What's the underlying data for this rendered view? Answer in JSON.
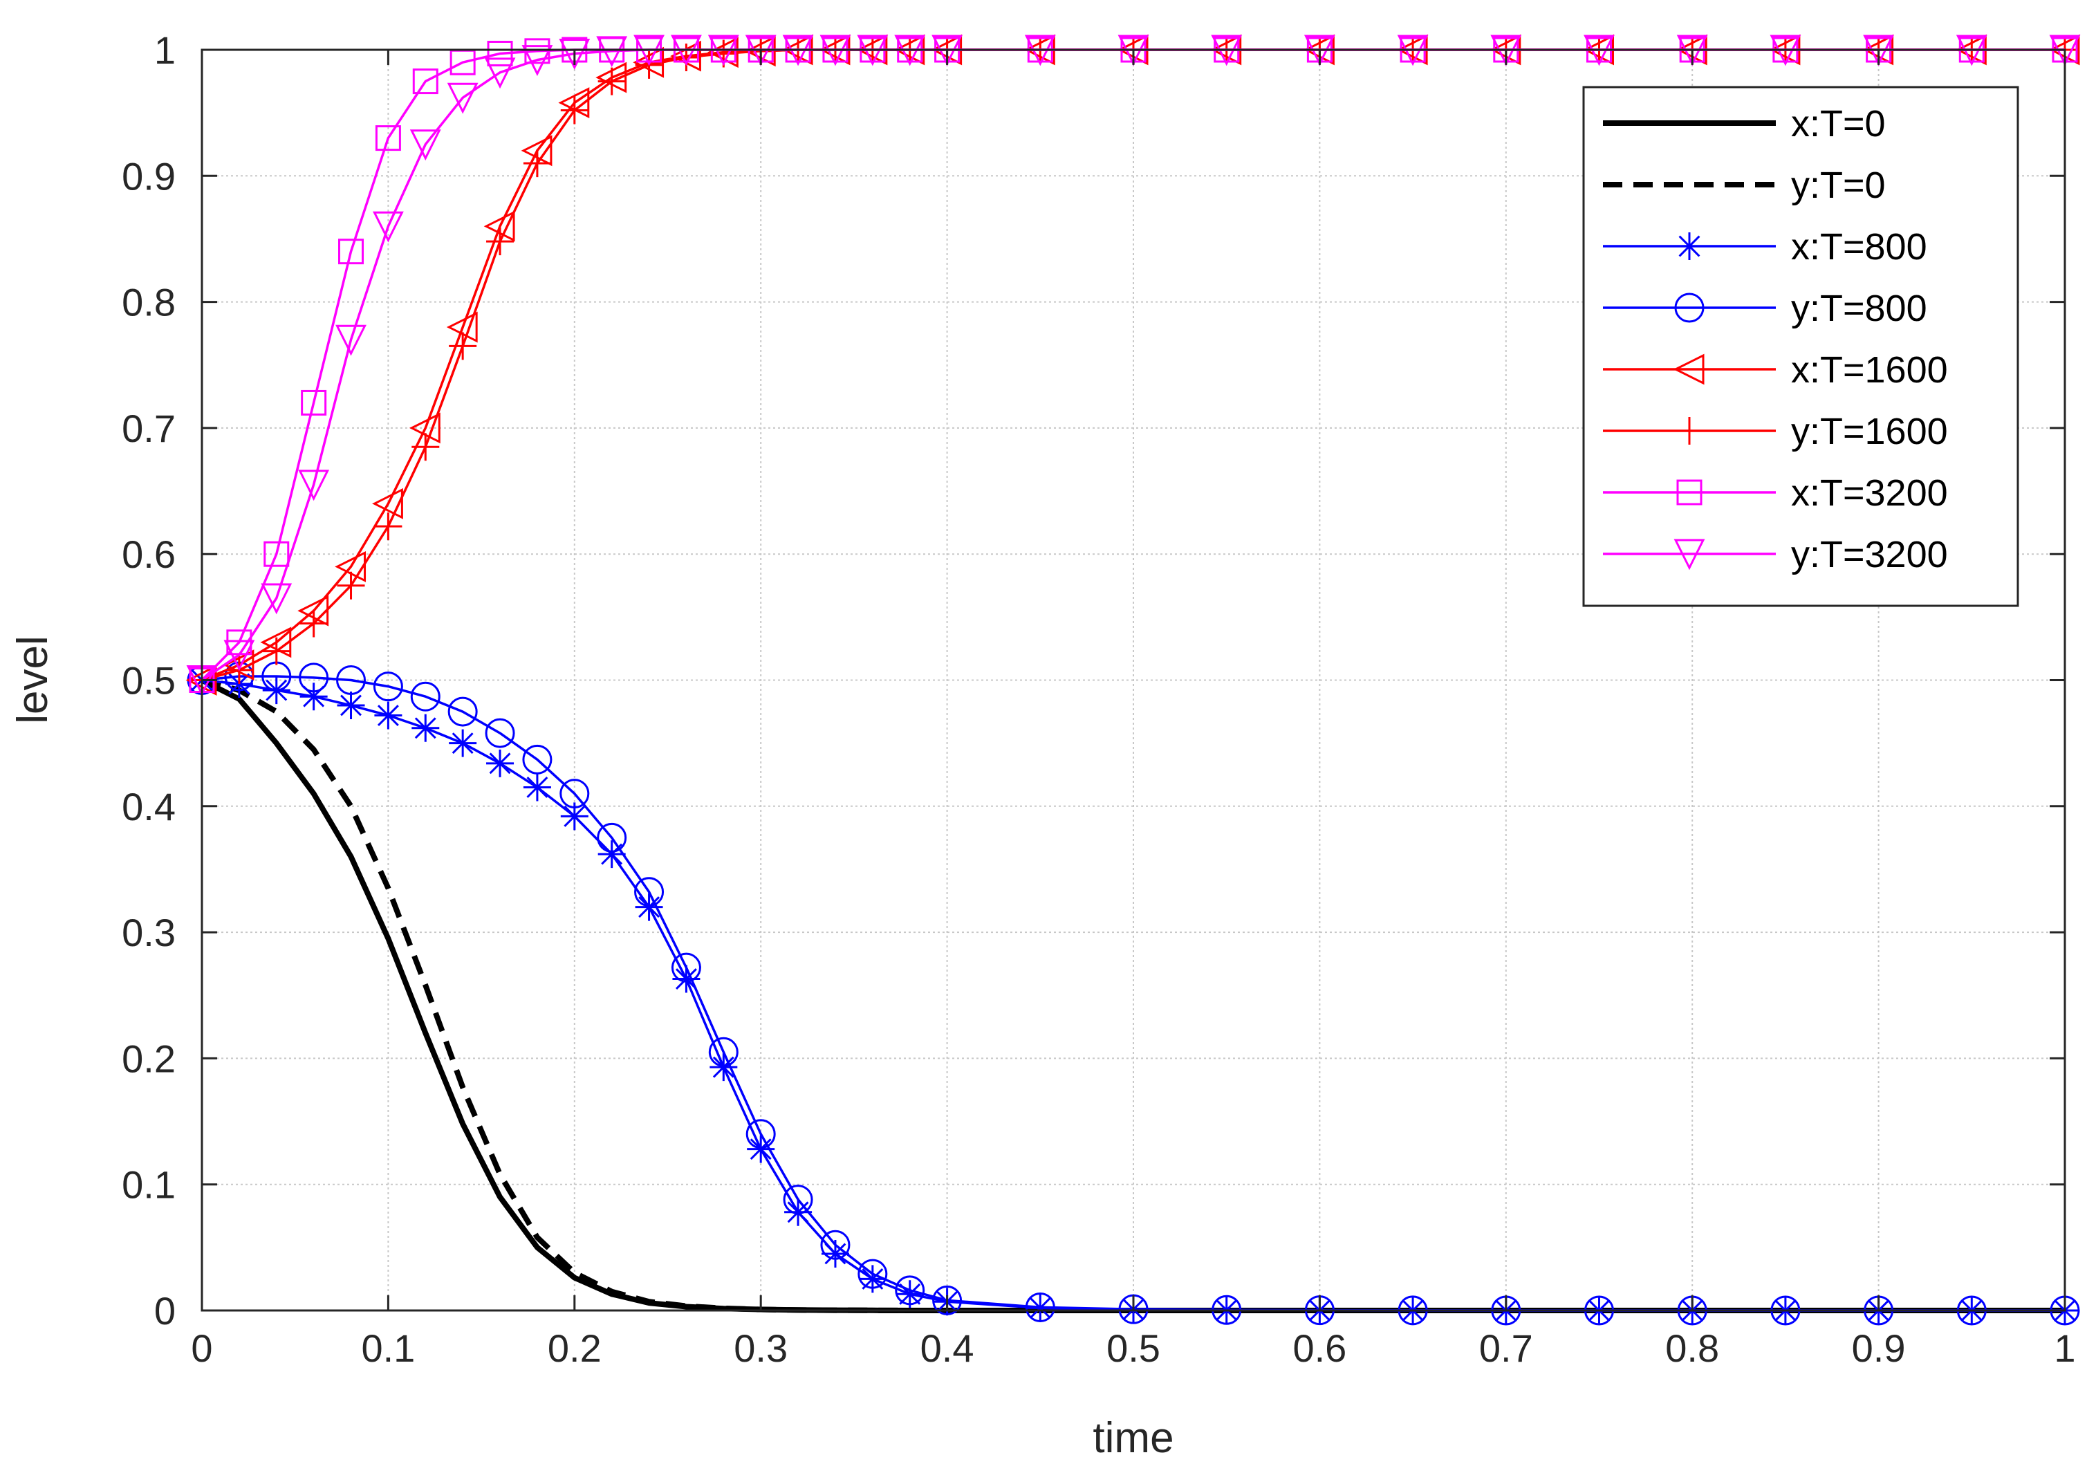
{
  "chart_data": {
    "type": "line",
    "title": "",
    "xlabel": "time",
    "ylabel": "level",
    "xlim": [
      0,
      1
    ],
    "ylim": [
      0,
      1
    ],
    "grid": true,
    "legend_position": "top-right",
    "x_ticks": [
      "0",
      "0.1",
      "0.2",
      "0.3",
      "0.4",
      "0.5",
      "0.6",
      "0.7",
      "0.8",
      "0.9",
      "1"
    ],
    "y_ticks": [
      "0",
      "0.1",
      "0.2",
      "0.3",
      "0.4",
      "0.5",
      "0.6",
      "0.7",
      "0.8",
      "0.9",
      "1"
    ],
    "x": [
      0,
      0.02,
      0.04,
      0.06,
      0.08,
      0.1,
      0.12,
      0.14,
      0.16,
      0.18,
      0.2,
      0.22,
      0.24,
      0.26,
      0.28,
      0.3,
      0.32,
      0.34,
      0.36,
      0.38,
      0.4,
      0.45,
      0.5,
      0.55,
      0.6,
      0.65,
      0.7,
      0.75,
      0.8,
      0.85,
      0.9,
      0.95,
      1
    ],
    "series": [
      {
        "name": "x:T=0",
        "color": "#000000",
        "line": "solid-thick",
        "marker": "none",
        "values": [
          0.5,
          0.485,
          0.45,
          0.41,
          0.36,
          0.295,
          0.22,
          0.148,
          0.09,
          0.05,
          0.026,
          0.013,
          0.006,
          0.003,
          0.0015,
          0.0008,
          0.0004,
          0.0002,
          0.0001,
          0,
          0,
          0,
          0,
          0,
          0,
          0,
          0,
          0,
          0,
          0,
          0,
          0,
          0
        ]
      },
      {
        "name": "y:T=0",
        "color": "#000000",
        "line": "dashed-thick",
        "marker": "none",
        "values": [
          0.5,
          0.492,
          0.475,
          0.445,
          0.4,
          0.335,
          0.258,
          0.177,
          0.108,
          0.058,
          0.03,
          0.015,
          0.007,
          0.0035,
          0.0017,
          0.0008,
          0.0004,
          0.0002,
          0.0001,
          0,
          0,
          0,
          0,
          0,
          0,
          0,
          0,
          0,
          0,
          0,
          0,
          0,
          0
        ]
      },
      {
        "name": "x:T=800",
        "color": "#0000ff",
        "line": "solid",
        "marker": "star",
        "values": [
          0.5,
          0.497,
          0.492,
          0.487,
          0.48,
          0.472,
          0.462,
          0.45,
          0.434,
          0.415,
          0.392,
          0.362,
          0.32,
          0.263,
          0.193,
          0.128,
          0.078,
          0.045,
          0.025,
          0.013,
          0.007,
          0.002,
          0.0008,
          0.0003,
          0.0001,
          0,
          0,
          0,
          0,
          0,
          0,
          0,
          0
        ]
      },
      {
        "name": "y:T=800",
        "color": "#0000ff",
        "line": "solid",
        "marker": "circle",
        "values": [
          0.5,
          0.503,
          0.503,
          0.502,
          0.5,
          0.495,
          0.487,
          0.475,
          0.458,
          0.437,
          0.41,
          0.375,
          0.332,
          0.272,
          0.205,
          0.14,
          0.088,
          0.052,
          0.029,
          0.016,
          0.008,
          0.0025,
          0.001,
          0.0004,
          0.0002,
          0.0001,
          0,
          0,
          0,
          0,
          0,
          0,
          0
        ]
      },
      {
        "name": "x:T=1600",
        "color": "#ff0000",
        "line": "solid",
        "marker": "triangle-left",
        "values": [
          0.5,
          0.512,
          0.53,
          0.555,
          0.59,
          0.64,
          0.7,
          0.78,
          0.86,
          0.92,
          0.958,
          0.978,
          0.99,
          0.995,
          0.998,
          0.999,
          1,
          1,
          1,
          1,
          1,
          1,
          1,
          1,
          1,
          1,
          1,
          1,
          1,
          1,
          1,
          1,
          1
        ]
      },
      {
        "name": "y:T=1600",
        "color": "#ff0000",
        "line": "solid",
        "marker": "plus",
        "values": [
          0.5,
          0.508,
          0.523,
          0.545,
          0.575,
          0.622,
          0.685,
          0.765,
          0.848,
          0.91,
          0.952,
          0.975,
          0.988,
          0.994,
          0.997,
          0.999,
          1,
          1,
          1,
          1,
          1,
          1,
          1,
          1,
          1,
          1,
          1,
          1,
          1,
          1,
          1,
          1,
          1
        ]
      },
      {
        "name": "x:T=3200",
        "color": "#ff00ff",
        "line": "solid",
        "marker": "square",
        "values": [
          0.5,
          0.53,
          0.6,
          0.72,
          0.84,
          0.93,
          0.975,
          0.99,
          0.997,
          0.999,
          1,
          1,
          1,
          1,
          1,
          1,
          1,
          1,
          1,
          1,
          1,
          1,
          1,
          1,
          1,
          1,
          1,
          1,
          1,
          1,
          1,
          1,
          1
        ]
      },
      {
        "name": "y:T=3200",
        "color": "#ff00ff",
        "line": "solid",
        "marker": "triangle-down",
        "values": [
          0.5,
          0.52,
          0.565,
          0.655,
          0.77,
          0.86,
          0.925,
          0.962,
          0.982,
          0.992,
          0.997,
          0.999,
          1,
          1,
          1,
          1,
          1,
          1,
          1,
          1,
          1,
          1,
          1,
          1,
          1,
          1,
          1,
          1,
          1,
          1,
          1,
          1,
          1
        ]
      }
    ]
  }
}
